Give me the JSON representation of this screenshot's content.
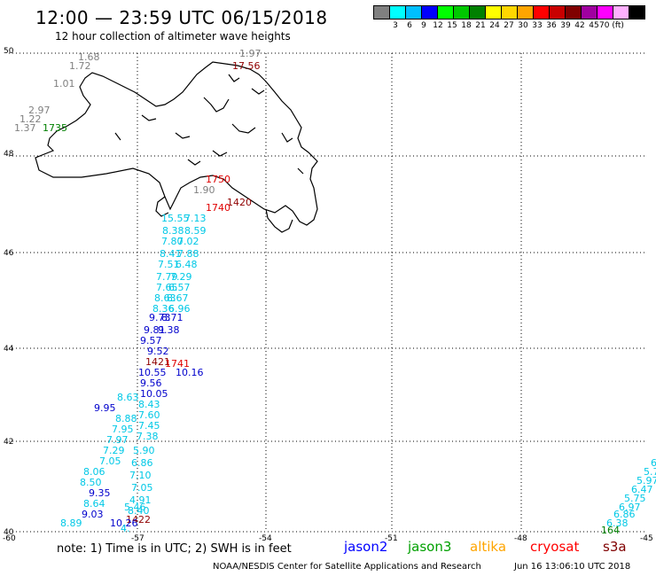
{
  "header": {
    "title": "12:00 — 23:59 UTC 06/15/2018",
    "subtitle": "12 hour collection of altimeter wave heights"
  },
  "legend": {
    "labels": [
      "3",
      "6",
      "9",
      "12",
      "15",
      "18",
      "21",
      "24",
      "27",
      "30",
      "33",
      "36",
      "39",
      "42",
      "45",
      "70 (ft)"
    ],
    "colors": [
      "#808080",
      "#00ffff",
      "#00bfff",
      "#0000ff",
      "#00ff00",
      "#00c800",
      "#008000",
      "#ffff00",
      "#ffd700",
      "#ffa500",
      "#ff0000",
      "#c80000",
      "#800000",
      "#a000a0",
      "#ff00ff",
      "#ffb0ff",
      "#000000"
    ]
  },
  "axes": {
    "lat_labels": [
      "50",
      "48",
      "46",
      "44",
      "42",
      "40"
    ],
    "lon_labels": [
      "-60",
      "-57",
      "-54",
      "-51",
      "-48",
      "-45"
    ]
  },
  "map_labels": [
    {
      "text": "1.68",
      "c": "gray"
    },
    {
      "text": "1.72",
      "c": "gray"
    },
    {
      "text": "1.01",
      "c": "gray"
    },
    {
      "text": "2.97",
      "c": "gray"
    },
    {
      "text": "1.22",
      "c": "gray"
    },
    {
      "text": "1.37",
      "c": "gray"
    },
    {
      "text": "1735",
      "c": "green"
    },
    {
      "text": "1.97",
      "c": "gray"
    },
    {
      "text": "17.56",
      "c": "darkred"
    },
    {
      "text": "1.90",
      "c": "gray"
    },
    {
      "text": "1750",
      "c": "red"
    },
    {
      "text": "1420",
      "c": "darkred"
    },
    {
      "text": "1740",
      "c": "red"
    },
    {
      "text": "15.55",
      "c": "cyan"
    },
    {
      "text": "7.13",
      "c": "cyan"
    },
    {
      "text": "8.38",
      "c": "cyan"
    },
    {
      "text": "8.59",
      "c": "cyan"
    },
    {
      "text": "7.80",
      "c": "cyan"
    },
    {
      "text": "7.02",
      "c": "cyan"
    },
    {
      "text": "8.41",
      "c": "cyan"
    },
    {
      "text": "7.88",
      "c": "cyan"
    },
    {
      "text": "7.51",
      "c": "cyan"
    },
    {
      "text": "6.48",
      "c": "cyan"
    },
    {
      "text": "7.79",
      "c": "cyan"
    },
    {
      "text": "7.29",
      "c": "cyan"
    },
    {
      "text": "7.65",
      "c": "cyan"
    },
    {
      "text": "6.57",
      "c": "cyan"
    },
    {
      "text": "8.63",
      "c": "cyan"
    },
    {
      "text": "8.67",
      "c": "cyan"
    },
    {
      "text": "8.36",
      "c": "cyan"
    },
    {
      "text": "6.96",
      "c": "cyan"
    },
    {
      "text": "9.73",
      "c": "blue"
    },
    {
      "text": "8.71",
      "c": "blue"
    },
    {
      "text": "9.81",
      "c": "blue"
    },
    {
      "text": "9.38",
      "c": "blue"
    },
    {
      "text": "9.57",
      "c": "blue"
    },
    {
      "text": "9.52",
      "c": "blue"
    },
    {
      "text": "1421",
      "c": "darkred"
    },
    {
      "text": "1741",
      "c": "red"
    },
    {
      "text": "10.16",
      "c": "blue"
    },
    {
      "text": "10.55",
      "c": "blue"
    },
    {
      "text": "9.56",
      "c": "blue"
    },
    {
      "text": "10.05",
      "c": "blue"
    },
    {
      "text": "8.63",
      "c": "cyan"
    },
    {
      "text": "9.95",
      "c": "blue"
    },
    {
      "text": "8.43",
      "c": "cyan"
    },
    {
      "text": "8.88",
      "c": "cyan"
    },
    {
      "text": "7.60",
      "c": "cyan"
    },
    {
      "text": "7.95",
      "c": "cyan"
    },
    {
      "text": "7.45",
      "c": "cyan"
    },
    {
      "text": "7.97",
      "c": "cyan"
    },
    {
      "text": "7.38",
      "c": "cyan"
    },
    {
      "text": "7.29",
      "c": "cyan"
    },
    {
      "text": "5.90",
      "c": "cyan"
    },
    {
      "text": "7.05",
      "c": "cyan"
    },
    {
      "text": "6.86",
      "c": "cyan"
    },
    {
      "text": "8.06",
      "c": "cyan"
    },
    {
      "text": "7.10",
      "c": "cyan"
    },
    {
      "text": "8.50",
      "c": "cyan"
    },
    {
      "text": "7.05",
      "c": "cyan"
    },
    {
      "text": "9.35",
      "c": "blue"
    },
    {
      "text": "4.91",
      "c": "cyan"
    },
    {
      "text": "8.64",
      "c": "cyan"
    },
    {
      "text": "5.46",
      "c": "cyan"
    },
    {
      "text": "9.03",
      "c": "blue"
    },
    {
      "text": "8.40",
      "c": "cyan"
    },
    {
      "text": "8.89",
      "c": "cyan"
    },
    {
      "text": "1422",
      "c": "darkred"
    },
    {
      "text": "10.26",
      "c": "blue"
    },
    {
      "text": "4.",
      "c": "cyan"
    },
    {
      "text": "6.0",
      "c": "cyan"
    },
    {
      "text": "5.78",
      "c": "cyan"
    },
    {
      "text": "5.97",
      "c": "cyan"
    },
    {
      "text": "6.47",
      "c": "cyan"
    },
    {
      "text": "5.75",
      "c": "cyan"
    },
    {
      "text": "6.97",
      "c": "cyan"
    },
    {
      "text": "6.86",
      "c": "cyan"
    },
    {
      "text": "6.38",
      "c": "cyan"
    },
    {
      "text": "164",
      "c": "green"
    }
  ],
  "footer": {
    "note": "note: 1) Time is in UTC; 2) SWH is in feet",
    "missions": [
      {
        "name": "jason2",
        "color": "#0000ff"
      },
      {
        "name": "jason3",
        "color": "#00a000"
      },
      {
        "name": "altika",
        "color": "#ffa500"
      },
      {
        "name": "cryosat",
        "color": "#ff0000"
      },
      {
        "name": "s3a",
        "color": "#800000"
      }
    ],
    "credit": "NOAA/NESDIS Center for Satellite Applications and Research",
    "timestamp": "Jun 16 13:06:10 UTC 2018"
  }
}
